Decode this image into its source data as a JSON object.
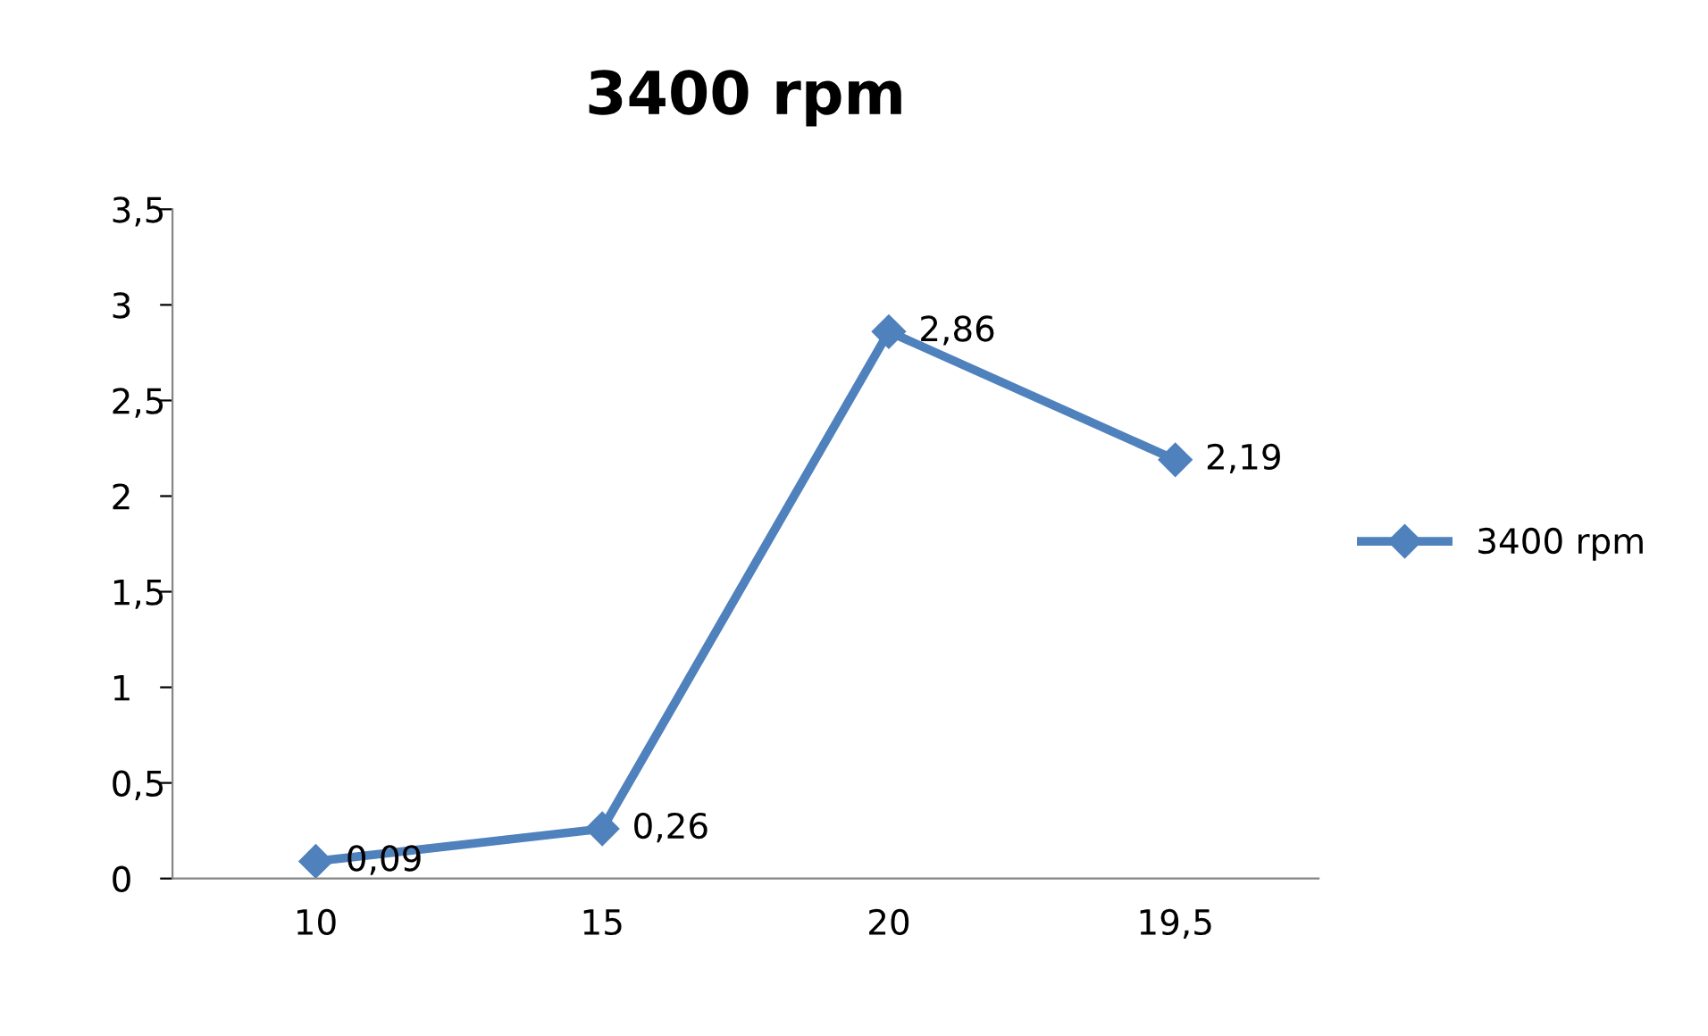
{
  "chart_data": {
    "type": "line",
    "title": "3400 rpm",
    "categories": [
      "10",
      "15",
      "20",
      "19,5"
    ],
    "series": [
      {
        "name": "3400 rpm",
        "color": "#4f81bd",
        "values": [
          0.09,
          0.26,
          2.86,
          2.19
        ],
        "value_labels": [
          "0,09",
          "0,26",
          "2,86",
          "2,19"
        ]
      }
    ],
    "ylim": [
      0,
      3.5
    ],
    "yticks": [
      0,
      {
        "value": 0.5,
        "label": "0,5"
      },
      1,
      {
        "value": 1.5,
        "label": "1,5"
      },
      2,
      {
        "value": 2.5,
        "label": "2,5"
      },
      3,
      {
        "value": 3.5,
        "label": "3,5"
      }
    ],
    "grid": false,
    "legend": "right",
    "marker": "diamond",
    "line_style": "solid"
  }
}
